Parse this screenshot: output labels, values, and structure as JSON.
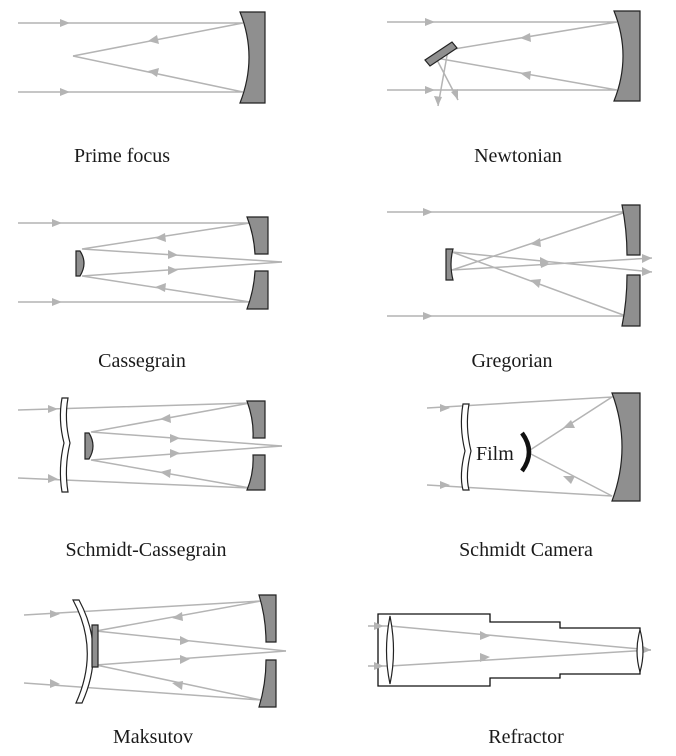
{
  "panels": [
    {
      "id": "prime-focus",
      "label": "Prime focus"
    },
    {
      "id": "newtonian",
      "label": "Newtonian"
    },
    {
      "id": "cassegrain",
      "label": "Cassegrain"
    },
    {
      "id": "gregorian",
      "label": "Gregorian"
    },
    {
      "id": "schmidt-cassegrain",
      "label": "Schmidt-Cassegrain"
    },
    {
      "id": "schmidt-camera",
      "label": "Schmidt Camera",
      "film_label": "Film"
    },
    {
      "id": "maksutov",
      "label": "Maksutov"
    },
    {
      "id": "refractor",
      "label": "Refractor"
    }
  ],
  "colors": {
    "ray": "#b4b4b4",
    "mirror": "#8f8f8f",
    "outline": "#222222"
  }
}
